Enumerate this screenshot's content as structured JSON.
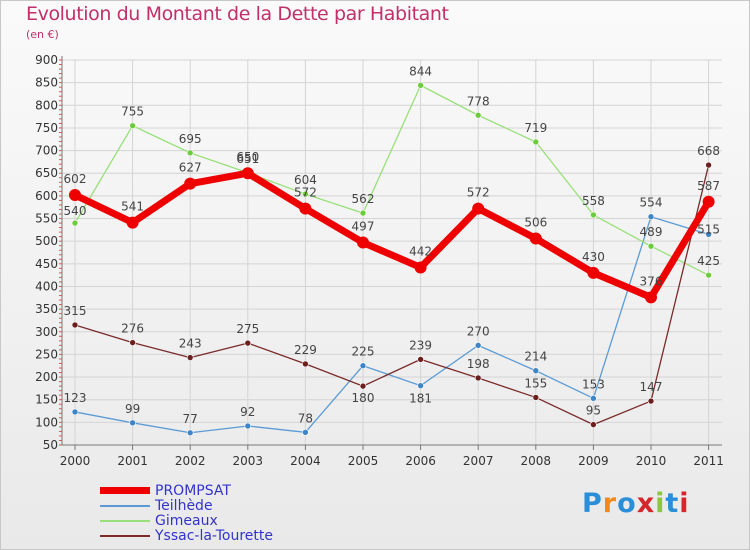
{
  "header": {
    "title": "Evolution du Montant de la Dette par Habitant",
    "subtitle": "(en €)"
  },
  "logo": {
    "text": "Proxiti",
    "colors": [
      "#2a8fd8",
      "#f08a1c",
      "#2a8fd8",
      "#d7262b",
      "#8cc63f",
      "#2a8fd8",
      "#d7262b"
    ]
  },
  "chart_data": {
    "type": "line",
    "x": [
      "2000",
      "2001",
      "2002",
      "2003",
      "2004",
      "2005",
      "2006",
      "2007",
      "2008",
      "2009",
      "2010",
      "2011"
    ],
    "ylim": [
      50,
      900
    ],
    "yticks": [
      50,
      100,
      150,
      200,
      250,
      300,
      350,
      400,
      450,
      500,
      550,
      600,
      650,
      700,
      750,
      800,
      850,
      900
    ],
    "grid": true,
    "legend": "bottom-left",
    "series": [
      {
        "name": "Teilhède",
        "color": "#5b9bd5",
        "marker": "#3d85c6",
        "width": 1.3,
        "values": [
          123,
          99,
          77,
          92,
          78,
          225,
          181,
          270,
          214,
          153,
          554,
          515
        ],
        "labels": [
          "123",
          "99",
          "77",
          "92",
          "78",
          "225",
          "181",
          "270",
          "214",
          "153",
          "554",
          "515"
        ]
      },
      {
        "name": "Gimeaux",
        "color": "#99e07a",
        "marker": "#6ccc3c",
        "width": 1.3,
        "values": [
          540,
          755,
          695,
          651,
          604,
          562,
          844,
          778,
          719,
          558,
          489,
          425
        ],
        "labels": [
          "540",
          "755",
          "695",
          "651",
          "604",
          "562",
          "844",
          "778",
          "719",
          "558",
          "489",
          "425"
        ]
      },
      {
        "name": "Yssac-la-Tourette",
        "color": "#7a2b2b",
        "marker": "#6b1f1f",
        "width": 1.3,
        "values": [
          315,
          276,
          243,
          275,
          229,
          180,
          239,
          198,
          155,
          95,
          147,
          668
        ],
        "labels": [
          "315",
          "276",
          "243",
          "275",
          "229",
          "180",
          "239",
          "198",
          "155",
          "95",
          "147",
          "668"
        ]
      },
      {
        "name": "PROMPSAT",
        "color": "#ee0000",
        "marker": "#ee0000",
        "width": 7,
        "values": [
          602,
          541,
          627,
          650,
          572,
          497,
          442,
          572,
          506,
          430,
          376,
          587
        ],
        "labels": [
          "602",
          "541",
          "627",
          "650",
          "572",
          "497",
          "442",
          "572",
          "506",
          "430",
          "376",
          "587"
        ]
      }
    ],
    "legend_entries": [
      {
        "name": "PROMPSAT",
        "color": "#ee0000",
        "label_color": "#3333cc"
      },
      {
        "name": "Teilhède",
        "color": "#5b9bd5",
        "label_color": "#3333cc"
      },
      {
        "name": "Gimeaux",
        "color": "#99e07a",
        "label_color": "#3333cc"
      },
      {
        "name": "Yssac-la-Tourette",
        "color": "#7a2b2b",
        "label_color": "#3333cc"
      }
    ]
  }
}
